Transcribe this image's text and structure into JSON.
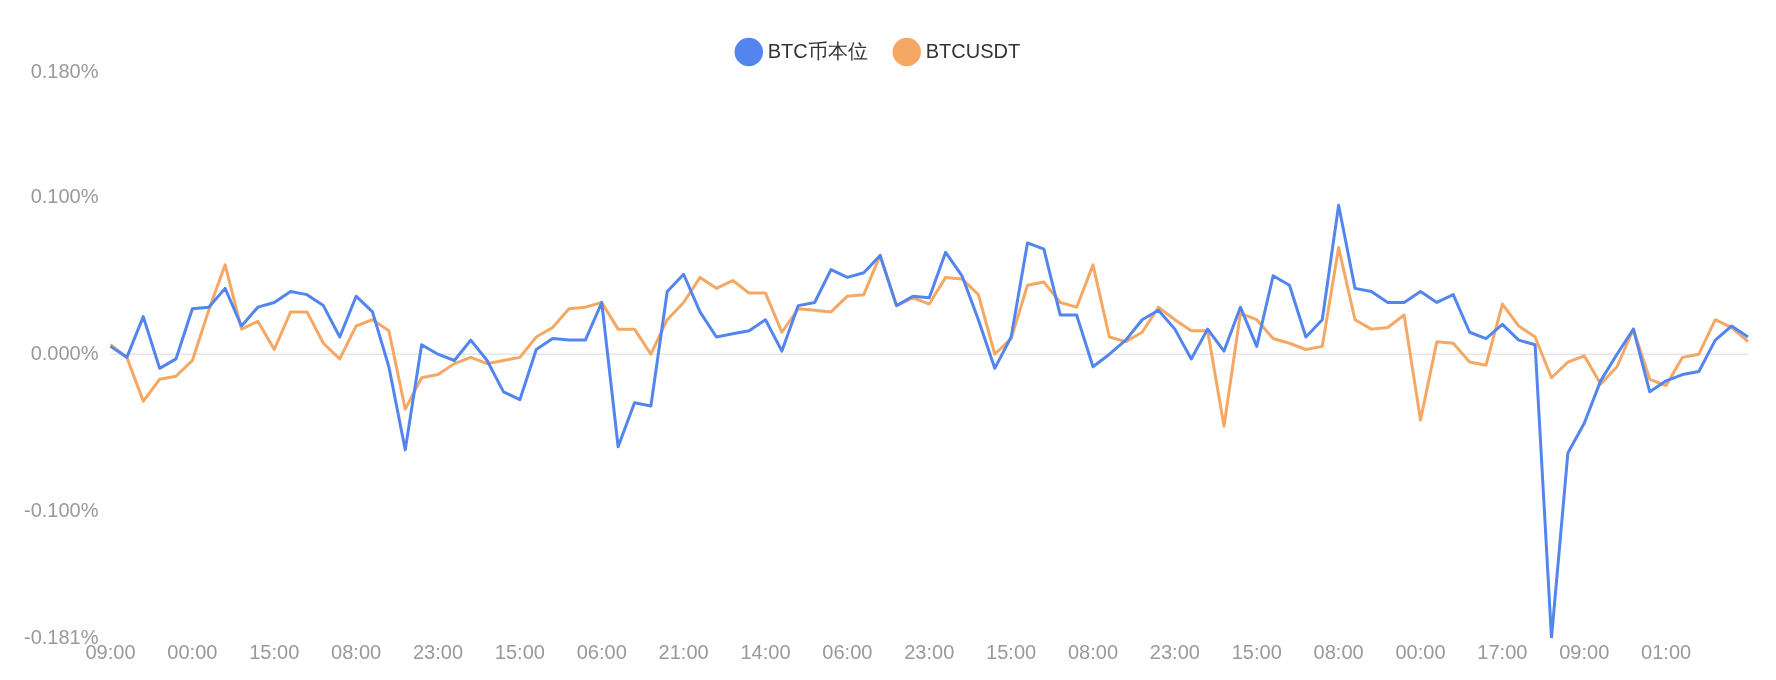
{
  "chart_data": {
    "type": "line",
    "categories": [
      "09:00",
      null,
      null,
      null,
      null,
      "00:00",
      null,
      null,
      null,
      null,
      "15:00",
      null,
      null,
      null,
      null,
      "08:00",
      null,
      null,
      null,
      null,
      "23:00",
      null,
      null,
      null,
      null,
      "15:00",
      null,
      null,
      null,
      null,
      "06:00",
      null,
      null,
      null,
      null,
      "21:00",
      null,
      null,
      null,
      null,
      "14:00",
      null,
      null,
      null,
      null,
      "06:00",
      null,
      null,
      null,
      null,
      "23:00",
      null,
      null,
      null,
      null,
      "15:00",
      null,
      null,
      null,
      null,
      "08:00",
      null,
      null,
      null,
      null,
      "23:00",
      null,
      null,
      null,
      null,
      "15:00",
      null,
      null,
      null,
      null,
      "08:00",
      null,
      null,
      null,
      null,
      "00:00",
      null,
      null,
      null,
      null,
      "17:00",
      null,
      null,
      null,
      null,
      "09:00",
      null,
      null,
      null,
      null,
      "01:00",
      null,
      null,
      null,
      null,
      null
    ],
    "series": [
      {
        "name": "BTC币本位",
        "color": "#5385ee",
        "values": [
          0.005,
          -0.002,
          0.024,
          -0.009,
          -0.003,
          0.029,
          0.03,
          0.042,
          0.018,
          0.03,
          0.033,
          0.04,
          0.038,
          0.031,
          0.011,
          0.037,
          0.027,
          -0.008,
          -0.061,
          0.006,
          0.0,
          -0.004,
          0.009,
          -0.004,
          -0.024,
          -0.029,
          0.003,
          0.01,
          0.009,
          0.009,
          0.033,
          -0.059,
          -0.031,
          -0.033,
          0.04,
          0.051,
          0.027,
          0.011,
          0.013,
          0.015,
          0.022,
          0.002,
          0.031,
          0.033,
          0.054,
          0.049,
          0.052,
          0.063,
          0.031,
          0.037,
          0.036,
          0.065,
          0.05,
          0.022,
          -0.009,
          0.011,
          0.071,
          0.067,
          0.025,
          0.025,
          -0.008,
          0.0,
          0.009,
          0.022,
          0.028,
          0.016,
          -0.003,
          0.016,
          0.002,
          0.03,
          0.005,
          0.05,
          0.044,
          0.011,
          0.022,
          0.095,
          0.042,
          0.04,
          0.033,
          0.033,
          0.04,
          0.033,
          0.038,
          0.014,
          0.01,
          0.019,
          0.009,
          0.006,
          -0.181,
          -0.063,
          -0.044,
          -0.017,
          0.0,
          0.016,
          -0.024,
          -0.017,
          -0.013,
          -0.011,
          0.009,
          0.018,
          0.011
        ]
      },
      {
        "name": "BTCUSDT",
        "color": "#f5a864",
        "values": [
          0.006,
          -0.002,
          -0.03,
          -0.016,
          -0.014,
          -0.004,
          0.028,
          0.057,
          0.016,
          0.021,
          0.003,
          0.027,
          0.027,
          0.007,
          -0.003,
          0.018,
          0.022,
          0.015,
          -0.035,
          -0.015,
          -0.013,
          -0.006,
          -0.002,
          -0.006,
          -0.004,
          -0.002,
          0.011,
          0.017,
          0.029,
          0.03,
          0.033,
          0.016,
          0.016,
          0.0,
          0.022,
          0.033,
          0.049,
          0.042,
          0.047,
          0.039,
          0.039,
          0.014,
          0.029,
          0.028,
          0.027,
          0.037,
          0.038,
          0.063,
          0.031,
          0.036,
          0.032,
          0.049,
          0.048,
          0.038,
          0.0,
          0.01,
          0.044,
          0.046,
          0.033,
          0.03,
          0.057,
          0.011,
          0.008,
          0.014,
          0.03,
          0.022,
          0.015,
          0.015,
          -0.046,
          0.026,
          0.022,
          0.01,
          0.007,
          0.003,
          0.005,
          0.068,
          0.022,
          0.016,
          0.017,
          0.025,
          -0.042,
          0.008,
          0.007,
          -0.005,
          -0.007,
          0.032,
          0.018,
          0.011,
          -0.015,
          -0.005,
          -0.001,
          -0.019,
          -0.008,
          0.016,
          -0.016,
          -0.02,
          -0.002,
          0.0,
          0.022,
          0.017,
          0.008
        ]
      }
    ],
    "ylim": [
      -0.181,
      0.18
    ],
    "yticks": [
      {
        "value": 0.18,
        "label": "0.180%"
      },
      {
        "value": 0.1,
        "label": "0.100%"
      },
      {
        "value": 0,
        "label": "0.000%"
      },
      {
        "value": -0.1,
        "label": "-0.100%"
      },
      {
        "value": -0.181,
        "label": "-0.181%"
      }
    ],
    "ref_lines": [
      {
        "axis": "y",
        "value": 0,
        "color": "#e6e6e6"
      }
    ],
    "grid": false,
    "legend": "top",
    "marker": "none",
    "line_style": "solid"
  }
}
